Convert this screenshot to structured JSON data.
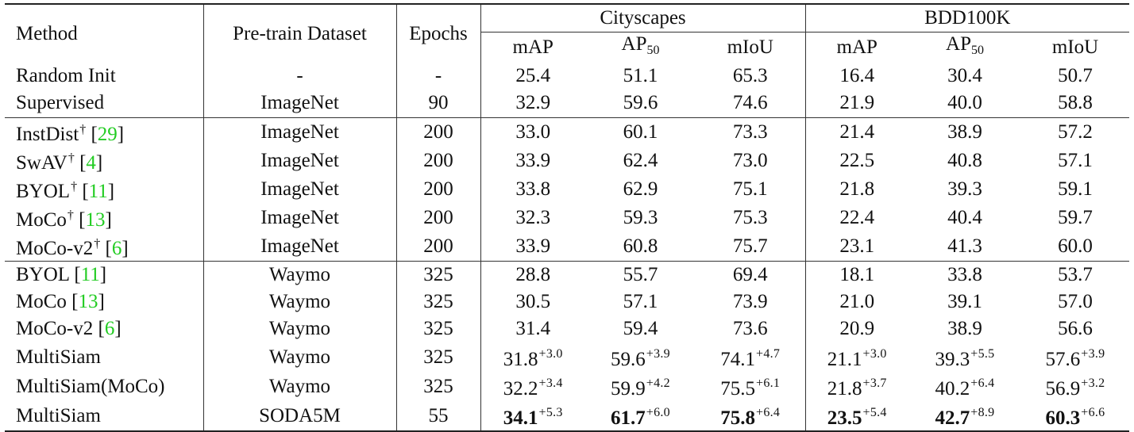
{
  "header": {
    "method": "Method",
    "pretrain": "Pre-train Dataset",
    "epochs": "Epochs",
    "group1": "Cityscapes",
    "group2": "BDD100K",
    "metric_map": "mAP",
    "metric_ap": "AP",
    "metric_ap_sub": "50",
    "metric_miou": "mIoU"
  },
  "rows": [
    {
      "method": "Random Init",
      "dagger": "",
      "cite": "",
      "dataset": "-",
      "epochs": "-",
      "cells": [
        {
          "v": "25.4",
          "g": "",
          "b": false
        },
        {
          "v": "51.1",
          "g": "",
          "b": false
        },
        {
          "v": "65.3",
          "g": "",
          "b": false
        },
        {
          "v": "16.4",
          "g": "",
          "b": false
        },
        {
          "v": "30.4",
          "g": "",
          "b": false
        },
        {
          "v": "50.7",
          "g": "",
          "b": false
        }
      ]
    },
    {
      "method": "Supervised",
      "dagger": "",
      "cite": "",
      "dataset": "ImageNet",
      "epochs": "90",
      "cells": [
        {
          "v": "32.9",
          "g": "",
          "b": false
        },
        {
          "v": "59.6",
          "g": "",
          "b": false
        },
        {
          "v": "74.6",
          "g": "",
          "b": false
        },
        {
          "v": "21.9",
          "g": "",
          "b": false
        },
        {
          "v": "40.0",
          "g": "",
          "b": false
        },
        {
          "v": "58.8",
          "g": "",
          "b": false
        }
      ]
    },
    {
      "method": "InstDist",
      "dagger": "†",
      "cite": "29",
      "dataset": "ImageNet",
      "epochs": "200",
      "cells": [
        {
          "v": "33.0",
          "g": "",
          "b": false
        },
        {
          "v": "60.1",
          "g": "",
          "b": false
        },
        {
          "v": "73.3",
          "g": "",
          "b": false
        },
        {
          "v": "21.4",
          "g": "",
          "b": false
        },
        {
          "v": "38.9",
          "g": "",
          "b": false
        },
        {
          "v": "57.2",
          "g": "",
          "b": false
        }
      ]
    },
    {
      "method": "SwAV",
      "dagger": "†",
      "cite": "4",
      "dataset": "ImageNet",
      "epochs": "200",
      "cells": [
        {
          "v": "33.9",
          "g": "",
          "b": false
        },
        {
          "v": "62.4",
          "g": "",
          "b": false
        },
        {
          "v": "73.0",
          "g": "",
          "b": false
        },
        {
          "v": "22.5",
          "g": "",
          "b": false
        },
        {
          "v": "40.8",
          "g": "",
          "b": false
        },
        {
          "v": "57.1",
          "g": "",
          "b": false
        }
      ]
    },
    {
      "method": "BYOL",
      "dagger": "†",
      "cite": "11",
      "dataset": "ImageNet",
      "epochs": "200",
      "cells": [
        {
          "v": "33.8",
          "g": "",
          "b": false
        },
        {
          "v": "62.9",
          "g": "",
          "b": false
        },
        {
          "v": "75.1",
          "g": "",
          "b": false
        },
        {
          "v": "21.8",
          "g": "",
          "b": false
        },
        {
          "v": "39.3",
          "g": "",
          "b": false
        },
        {
          "v": "59.1",
          "g": "",
          "b": false
        }
      ]
    },
    {
      "method": "MoCo",
      "dagger": "†",
      "cite": "13",
      "dataset": "ImageNet",
      "epochs": "200",
      "cells": [
        {
          "v": "32.3",
          "g": "",
          "b": false
        },
        {
          "v": "59.3",
          "g": "",
          "b": false
        },
        {
          "v": "75.3",
          "g": "",
          "b": false
        },
        {
          "v": "22.4",
          "g": "",
          "b": false
        },
        {
          "v": "40.4",
          "g": "",
          "b": false
        },
        {
          "v": "59.7",
          "g": "",
          "b": false
        }
      ]
    },
    {
      "method": "MoCo-v2",
      "dagger": "†",
      "cite": "6",
      "dataset": "ImageNet",
      "epochs": "200",
      "cells": [
        {
          "v": "33.9",
          "g": "",
          "b": false
        },
        {
          "v": "60.8",
          "g": "",
          "b": false
        },
        {
          "v": "75.7",
          "g": "",
          "b": false
        },
        {
          "v": "23.1",
          "g": "",
          "b": false
        },
        {
          "v": "41.3",
          "g": "",
          "b": false
        },
        {
          "v": "60.0",
          "g": "",
          "b": false
        }
      ]
    },
    {
      "method": "BYOL",
      "dagger": "",
      "cite": "11",
      "dataset": "Waymo",
      "epochs": "325",
      "cells": [
        {
          "v": "28.8",
          "g": "",
          "b": false
        },
        {
          "v": "55.7",
          "g": "",
          "b": false
        },
        {
          "v": "69.4",
          "g": "",
          "b": false
        },
        {
          "v": "18.1",
          "g": "",
          "b": false
        },
        {
          "v": "33.8",
          "g": "",
          "b": false
        },
        {
          "v": "53.7",
          "g": "",
          "b": false
        }
      ]
    },
    {
      "method": "MoCo",
      "dagger": "",
      "cite": "13",
      "dataset": "Waymo",
      "epochs": "325",
      "cells": [
        {
          "v": "30.5",
          "g": "",
          "b": false
        },
        {
          "v": "57.1",
          "g": "",
          "b": false
        },
        {
          "v": "73.9",
          "g": "",
          "b": false
        },
        {
          "v": "21.0",
          "g": "",
          "b": false
        },
        {
          "v": "39.1",
          "g": "",
          "b": false
        },
        {
          "v": "57.0",
          "g": "",
          "b": false
        }
      ]
    },
    {
      "method": "MoCo-v2",
      "dagger": "",
      "cite": "6",
      "dataset": "Waymo",
      "epochs": "325",
      "cells": [
        {
          "v": "31.4",
          "g": "",
          "b": false
        },
        {
          "v": "59.4",
          "g": "",
          "b": false
        },
        {
          "v": "73.6",
          "g": "",
          "b": false
        },
        {
          "v": "20.9",
          "g": "",
          "b": false
        },
        {
          "v": "38.9",
          "g": "",
          "b": false
        },
        {
          "v": "56.6",
          "g": "",
          "b": false
        }
      ]
    },
    {
      "method": "MultiSiam",
      "dagger": "",
      "cite": "",
      "dataset": "Waymo",
      "epochs": "325",
      "cells": [
        {
          "v": "31.8",
          "g": "+3.0",
          "b": false
        },
        {
          "v": "59.6",
          "g": "+3.9",
          "b": false
        },
        {
          "v": "74.1",
          "g": "+4.7",
          "b": false
        },
        {
          "v": "21.1",
          "g": "+3.0",
          "b": false
        },
        {
          "v": "39.3",
          "g": "+5.5",
          "b": false
        },
        {
          "v": "57.6",
          "g": "+3.9",
          "b": false
        }
      ]
    },
    {
      "method": "MultiSiam(MoCo)",
      "dagger": "",
      "cite": "",
      "dataset": "Waymo",
      "epochs": "325",
      "cells": [
        {
          "v": "32.2",
          "g": "+3.4",
          "b": false
        },
        {
          "v": "59.9",
          "g": "+4.2",
          "b": false
        },
        {
          "v": "75.5",
          "g": "+6.1",
          "b": false
        },
        {
          "v": "21.8",
          "g": "+3.7",
          "b": false
        },
        {
          "v": "40.2",
          "g": "+6.4",
          "b": false
        },
        {
          "v": "56.9",
          "g": "+3.2",
          "b": false
        }
      ]
    },
    {
      "method": "MultiSiam",
      "dagger": "",
      "cite": "",
      "dataset": "SODA5M",
      "epochs": "55",
      "cells": [
        {
          "v": "34.1",
          "g": "+5.3",
          "b": true
        },
        {
          "v": "61.7",
          "g": "+6.0",
          "b": true
        },
        {
          "v": "75.8",
          "g": "+6.4",
          "b": true
        },
        {
          "v": "23.5",
          "g": "+5.4",
          "b": true
        },
        {
          "v": "42.7",
          "g": "+8.9",
          "b": true
        },
        {
          "v": "60.3",
          "g": "+6.6",
          "b": true
        }
      ]
    }
  ],
  "colors": {
    "citation": "#22cc22",
    "rule": "#222222",
    "text": "#111111"
  }
}
